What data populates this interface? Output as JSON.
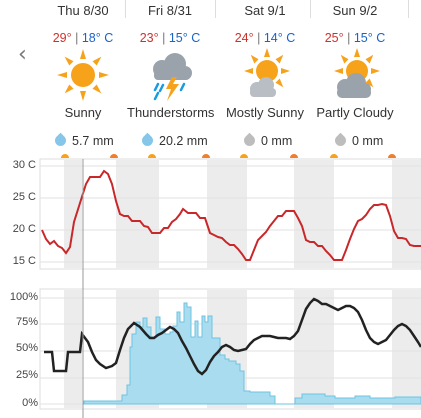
{
  "nav": {
    "prev_icon": "chevron-left-icon",
    "prev_glyph": "‹"
  },
  "days": [
    {
      "date": "Thu 8/30",
      "high": "29°",
      "low": "18° C",
      "condition": "Sunny",
      "icon": "sun-icon",
      "precip": "5.7 mm",
      "drop_color": "#86c6e8"
    },
    {
      "date": "Fri 8/31",
      "high": "23°",
      "low": "15° C",
      "condition": "Thunderstorms",
      "icon": "thunderstorm-icon",
      "precip": "20.2 mm",
      "drop_color": "#86c6e8"
    },
    {
      "date": "Sat 9/1",
      "high": "24°",
      "low": "14° C",
      "condition": "Mostly Sunny",
      "icon": "mostly-sunny-icon",
      "precip": "0 mm",
      "drop_color": "#bdbdbd"
    },
    {
      "date": "Sun 9/2",
      "high": "25°",
      "low": "15° C",
      "condition": "Partly Cloudy",
      "icon": "partly-cloudy-icon",
      "precip": "0 mm",
      "drop_color": "#bdbdbd"
    }
  ],
  "temp_chart": {
    "y_labels": [
      "30 C",
      "25 C",
      "20 C",
      "15 C"
    ],
    "line_color": "#c8282a"
  },
  "percent_chart": {
    "y_labels": [
      "100%",
      "75%",
      "50%",
      "25%",
      "0%"
    ],
    "line_color": "#222222",
    "bar_color": "#a9dcef"
  },
  "colors": {
    "high": "#d0302a",
    "low": "#1a63c4",
    "sun": "#f7a21b",
    "shade": "#ececec"
  }
}
